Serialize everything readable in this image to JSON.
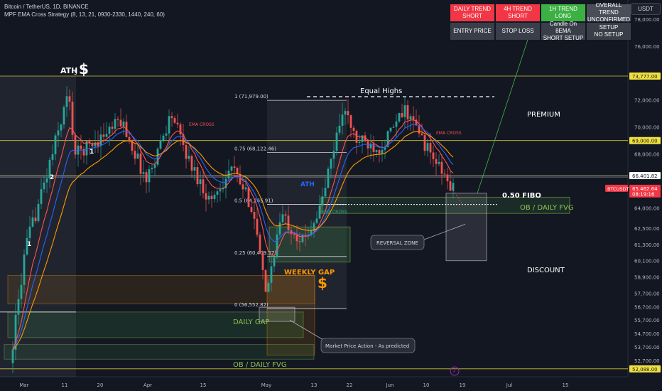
{
  "header": {
    "line1": "Bitcoin / TetherUS, 1D, BINANCE",
    "line2": "MPF EMA Cross Strategy (8, 13, 21, 0930-2330, 1440, 240, 60)",
    "currency_button": "USDT"
  },
  "status_table": {
    "row1": [
      {
        "line1": "DAILY TREND",
        "line2": "SHORT",
        "color": "#f23645"
      },
      {
        "line1": "4H TREND",
        "line2": "SHORT",
        "color": "#f23645"
      },
      {
        "line1": "1H TREND",
        "line2": "LONG",
        "color": "#3cb043"
      },
      {
        "line1": "OVERALL TREND",
        "line2": "UNCONFIRMED",
        "color": "#4a4e59"
      }
    ],
    "row2": [
      {
        "line1": "ENTRY PRICE",
        "line2": ""
      },
      {
        "line1": "STOP LOSS",
        "line2": ""
      },
      {
        "line1": "Candle On 8EMA",
        "line2": "SHORT SETUP"
      },
      {
        "line1": "SETUP",
        "line2": "NO SETUP"
      }
    ]
  },
  "chart_data": {
    "type": "candlestick",
    "symbol": "BTCUSDT",
    "timeframe": "1D",
    "ylim": [
      51500,
      79200
    ],
    "x_ticks": [
      "Mar",
      "11",
      "20",
      "Apr",
      "15",
      "May",
      "13",
      "22",
      "Jun",
      "10",
      "19",
      "Jul",
      "15"
    ],
    "y_ticks": [
      "78,000.00",
      "76,000.00",
      "72,000.00",
      "70,000.00",
      "68,000.00",
      "64,000.00",
      "62,500.00",
      "61,300.00",
      "60,100.00",
      "58,900.00",
      "57,700.00",
      "56,700.00",
      "55,700.00",
      "54,700.00",
      "53,700.00",
      "52,700.00"
    ],
    "price_labels": [
      {
        "text": "73,777.00",
        "value": 73777,
        "style": "yellow"
      },
      {
        "text": "69,000.00",
        "value": 69000,
        "style": "yellow"
      },
      {
        "text": "66,401.82",
        "value": 66401.82,
        "style": "white"
      },
      {
        "text": "65,462.64",
        "value": 65462.64,
        "style": "red"
      },
      {
        "text": "08:19:16",
        "value": 65050,
        "style": "red"
      },
      {
        "text": "52,088.00",
        "value": 52088,
        "style": "yellow"
      }
    ],
    "horizontal_levels": [
      73777,
      69000,
      66401.82,
      52088
    ],
    "fib_levels": [
      {
        "label": "1 (71,979.00)",
        "value": 71979
      },
      {
        "label": "0.75 (68,122.46)",
        "value": 68122.46
      },
      {
        "label": "0.5 (64,265.91)",
        "value": 64265.91
      },
      {
        "label": "0.25 (60,409.37)",
        "value": 60409.37
      },
      {
        "label": "0 (56,552.82)",
        "value": 56552.82
      }
    ],
    "annotations": {
      "ath": "ATH",
      "ath_sub": "3",
      "equal_highs": "Equal Highs",
      "premium": "PREMIUM",
      "discount": "DISCOUNT",
      "fibo_050": "0.50 FIBO",
      "ob_fvg_upper": "OB / DAILY FVG",
      "weekly_gap": "WEEKLY GAP",
      "daily_gap": "DAILY GAP",
      "ob_fvg_lower": "OB / DAILY FVG",
      "reversal_zone": "REVERSAL ZONE",
      "market_action": "Market Price Action - As predicted",
      "ath_blue": "ATH",
      "ema_cross": "EMA CROSS",
      "wave_1": "1",
      "wave_2": "2",
      "dollar": "$"
    },
    "colors": {
      "bull": "#26a69a",
      "bear": "#ef5350",
      "ema_fast": "#ff5252",
      "ema_mid": "#2962ff",
      "ema_slow": "#ff9800",
      "level": "#f0e040"
    }
  }
}
